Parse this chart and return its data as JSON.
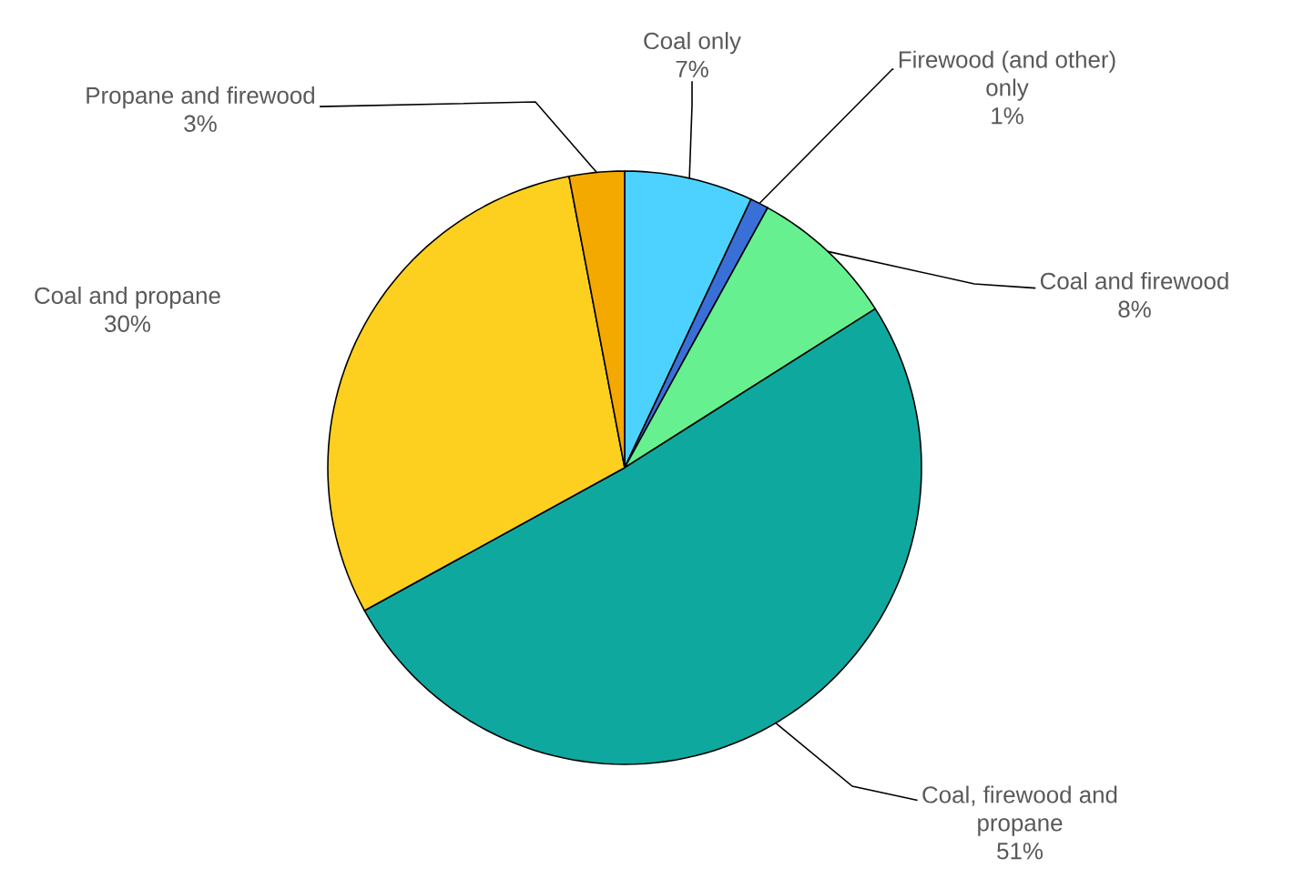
{
  "chart_data": {
    "type": "pie",
    "categories": [
      "Coal only",
      "Firewood (and other) only",
      "Coal and firewood",
      "Coal, firewood and propane",
      "Coal and propane",
      "Propane and firewood"
    ],
    "values": [
      7,
      1,
      8,
      51,
      30,
      3
    ],
    "value_labels": [
      "7%",
      "1%",
      "8%",
      "51%",
      "30%",
      "3%"
    ],
    "colors": [
      "#4dd2ff",
      "#3a6fd8",
      "#66f090",
      "#0fa89e",
      "#fdd020",
      "#f4a900"
    ]
  }
}
